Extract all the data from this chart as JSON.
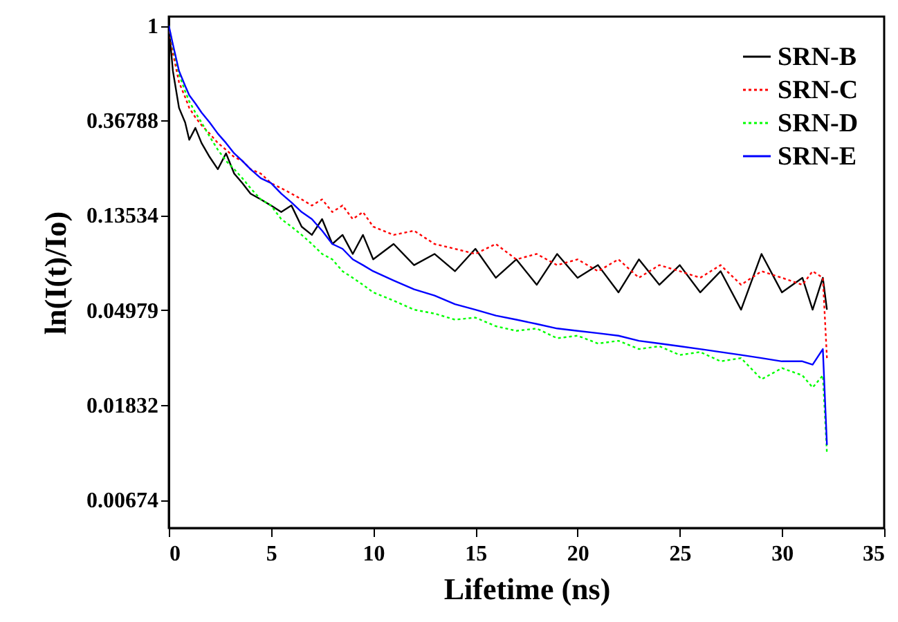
{
  "chart_data": {
    "type": "line",
    "xlabel": "Lifetime  (ns)",
    "ylabel": "ln(I(t)/Io)",
    "log": "y",
    "xlim": [
      0,
      35
    ],
    "xticks": [
      0,
      5,
      10,
      15,
      20,
      25,
      30,
      35
    ],
    "ylim": [
      0.005,
      1.1
    ],
    "yticks": [
      1,
      0.36788,
      0.13534,
      0.04979,
      0.01832,
      0.00674
    ],
    "grid": false,
    "legend": "top right",
    "marker": "none",
    "x": [
      0,
      0.2,
      0.5,
      0.8,
      1,
      1.3,
      1.6,
      2,
      2.4,
      2.8,
      3.2,
      3.6,
      4,
      4.5,
      5,
      5.5,
      6,
      6.5,
      7,
      7.5,
      8,
      8.5,
      9,
      9.5,
      10,
      11,
      12,
      13,
      14,
      15,
      16,
      17,
      18,
      19,
      20,
      21,
      22,
      23,
      24,
      25,
      26,
      27,
      28,
      29,
      30,
      31,
      31.5,
      32,
      32.2
    ],
    "series": [
      {
        "name": "SRN-B",
        "color": "#000000",
        "line_style": "solid",
        "values": [
          1,
          0.62,
          0.42,
          0.36,
          0.3,
          0.34,
          0.29,
          0.25,
          0.22,
          0.26,
          0.21,
          0.19,
          0.17,
          0.16,
          0.15,
          0.14,
          0.15,
          0.12,
          0.11,
          0.13,
          0.1,
          0.11,
          0.09,
          0.11,
          0.085,
          0.1,
          0.08,
          0.09,
          0.075,
          0.095,
          0.07,
          0.085,
          0.065,
          0.09,
          0.07,
          0.08,
          0.06,
          0.085,
          0.065,
          0.08,
          0.06,
          0.075,
          0.05,
          0.09,
          0.06,
          0.07,
          0.05,
          0.07,
          0.05
        ]
      },
      {
        "name": "SRN-C",
        "color": "#ff0000",
        "line_style": "dotted",
        "values": [
          1,
          0.75,
          0.55,
          0.47,
          0.42,
          0.38,
          0.35,
          0.32,
          0.29,
          0.27,
          0.25,
          0.24,
          0.22,
          0.21,
          0.19,
          0.18,
          0.17,
          0.16,
          0.15,
          0.16,
          0.14,
          0.15,
          0.13,
          0.14,
          0.12,
          0.11,
          0.115,
          0.1,
          0.095,
          0.09,
          0.1,
          0.085,
          0.09,
          0.08,
          0.085,
          0.075,
          0.085,
          0.07,
          0.08,
          0.075,
          0.07,
          0.08,
          0.065,
          0.075,
          0.07,
          0.065,
          0.075,
          0.07,
          0.03
        ]
      },
      {
        "name": "SRN-D",
        "color": "#00ff00",
        "line_style": "dotted",
        "values": [
          1,
          0.8,
          0.6,
          0.5,
          0.45,
          0.4,
          0.36,
          0.31,
          0.27,
          0.24,
          0.22,
          0.2,
          0.18,
          0.16,
          0.15,
          0.13,
          0.12,
          0.11,
          0.1,
          0.09,
          0.085,
          0.075,
          0.07,
          0.065,
          0.06,
          0.055,
          0.05,
          0.048,
          0.045,
          0.046,
          0.042,
          0.04,
          0.041,
          0.037,
          0.038,
          0.035,
          0.036,
          0.033,
          0.034,
          0.031,
          0.032,
          0.029,
          0.03,
          0.024,
          0.027,
          0.025,
          0.022,
          0.025,
          0.011
        ]
      },
      {
        "name": "SRN-E",
        "color": "#0000ff",
        "line_style": "solid",
        "values": [
          1,
          0.82,
          0.62,
          0.53,
          0.48,
          0.44,
          0.4,
          0.36,
          0.32,
          0.29,
          0.26,
          0.24,
          0.22,
          0.2,
          0.19,
          0.17,
          0.155,
          0.14,
          0.13,
          0.115,
          0.1,
          0.095,
          0.085,
          0.08,
          0.075,
          0.068,
          0.062,
          0.058,
          0.053,
          0.05,
          0.047,
          0.045,
          0.043,
          0.041,
          0.04,
          0.039,
          0.038,
          0.036,
          0.035,
          0.034,
          0.033,
          0.032,
          0.031,
          0.03,
          0.029,
          0.029,
          0.028,
          0.033,
          0.012
        ]
      }
    ]
  }
}
